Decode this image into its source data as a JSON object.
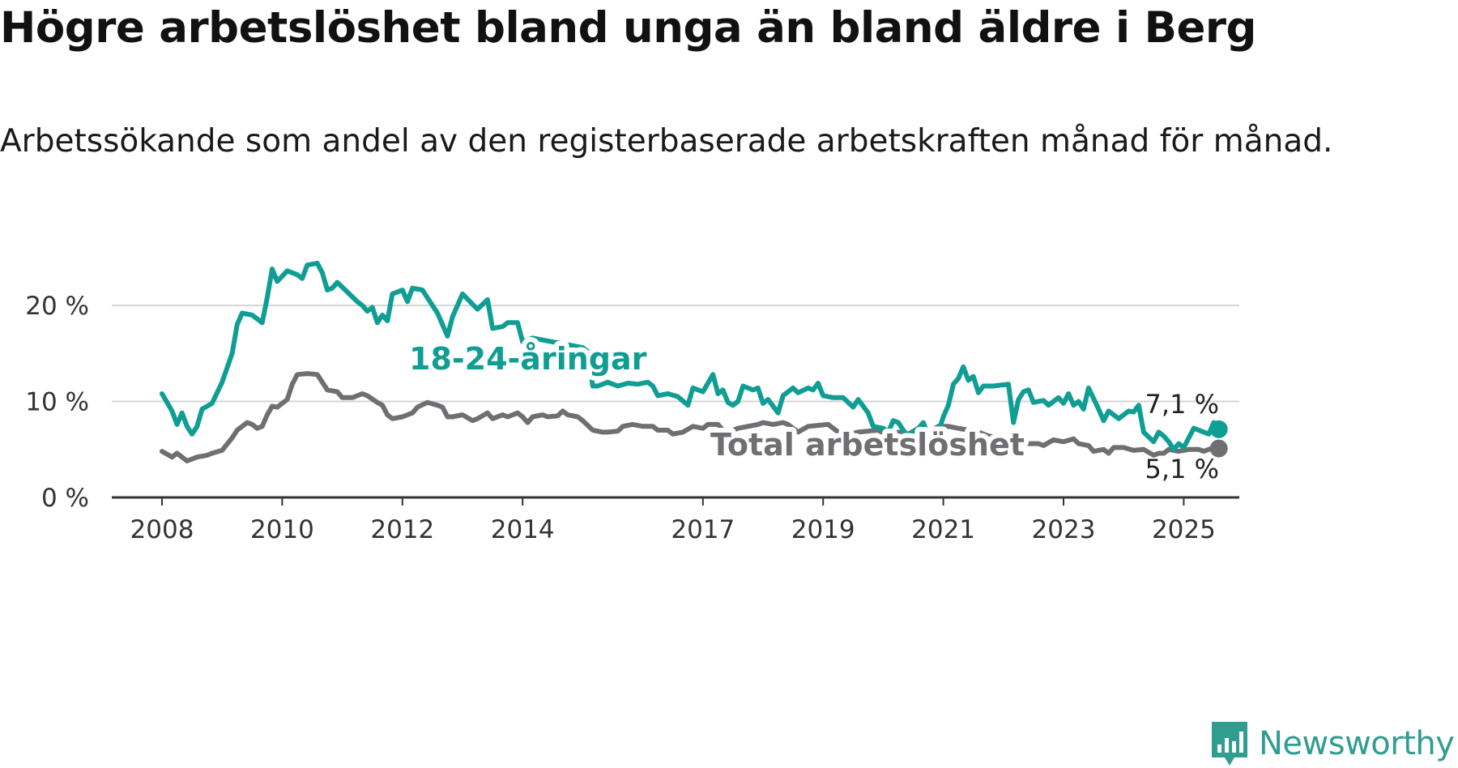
{
  "title": "Högre arbetslöshet bland unga än bland äldre i Berg",
  "subtitle": "Arbetssökande som andel av den registerbaserade arbetskraften månad för månad.",
  "brand": {
    "name": "Newsworthy",
    "icon": "newsworthy-chart-logo-icon",
    "color": "#2f9d8f"
  },
  "chart_data": {
    "type": "line",
    "title": "Högre arbetslöshet bland unga än bland äldre i Berg",
    "subtitle": "Arbetssökande som andel av den registerbaserade arbetskraften månad för månad.",
    "xlabel": "",
    "ylabel": "",
    "x_ticks": [
      "2008",
      "2010",
      "2012",
      "2014",
      "2017",
      "2019",
      "2021",
      "2023",
      "2025"
    ],
    "y_ticks": [
      "0 %",
      "10 %",
      "20 %"
    ],
    "ylim": [
      0,
      25
    ],
    "xlim": [
      "2007-03",
      "2025-12"
    ],
    "grid": "horizontal",
    "series": [
      {
        "name": "18-24-åringar",
        "color": "#109e94",
        "end_label": "7,1 %",
        "points": [
          [
            "2008-01",
            10.8
          ],
          [
            "2008-03",
            9.0
          ],
          [
            "2008-04",
            7.6
          ],
          [
            "2008-05",
            8.8
          ],
          [
            "2008-06",
            7.4
          ],
          [
            "2008-07",
            6.6
          ],
          [
            "2008-08",
            7.4
          ],
          [
            "2008-09",
            9.2
          ],
          [
            "2008-11",
            9.8
          ],
          [
            "2009-01",
            12.0
          ],
          [
            "2009-03",
            15.0
          ],
          [
            "2009-04",
            18.0
          ],
          [
            "2009-05",
            19.2
          ],
          [
            "2009-07",
            19.0
          ],
          [
            "2009-09",
            18.2
          ],
          [
            "2009-10",
            20.8
          ],
          [
            "2009-11",
            23.8
          ],
          [
            "2009-12",
            22.5
          ],
          [
            "2010-02",
            23.6
          ],
          [
            "2010-04",
            23.2
          ],
          [
            "2010-05",
            22.8
          ],
          [
            "2010-06",
            24.2
          ],
          [
            "2010-08",
            24.4
          ],
          [
            "2010-09",
            23.4
          ],
          [
            "2010-10",
            21.6
          ],
          [
            "2010-11",
            21.8
          ],
          [
            "2010-12",
            22.4
          ],
          [
            "2011-02",
            21.4
          ],
          [
            "2011-04",
            20.4
          ],
          [
            "2011-05",
            20.0
          ],
          [
            "2011-06",
            19.4
          ],
          [
            "2011-07",
            19.8
          ],
          [
            "2011-08",
            18.2
          ],
          [
            "2011-09",
            19.0
          ],
          [
            "2011-10",
            18.4
          ],
          [
            "2011-11",
            21.2
          ],
          [
            "2012-01",
            21.6
          ],
          [
            "2012-02",
            20.4
          ],
          [
            "2012-03",
            21.8
          ],
          [
            "2012-05",
            21.6
          ],
          [
            "2012-06",
            20.8
          ],
          [
            "2012-08",
            19.2
          ],
          [
            "2012-10",
            16.8
          ],
          [
            "2012-11",
            18.8
          ],
          [
            "2013-01",
            21.2
          ],
          [
            "2013-04",
            19.6
          ],
          [
            "2013-06",
            20.6
          ],
          [
            "2013-07",
            17.6
          ],
          [
            "2013-09",
            17.8
          ],
          [
            "2013-10",
            18.2
          ],
          [
            "2013-12",
            18.2
          ],
          [
            "2014-01",
            16.2
          ],
          [
            "2014-02",
            16.4
          ],
          [
            "2014-03",
            16.6
          ],
          [
            "2015-01",
            15.6
          ],
          [
            "2015-02",
            15.2
          ],
          [
            "2015-03",
            11.6
          ],
          [
            "2015-04",
            11.6
          ],
          [
            "2015-06",
            12.0
          ],
          [
            "2015-08",
            11.6
          ],
          [
            "2015-10",
            11.9
          ],
          [
            "2015-12",
            11.8
          ],
          [
            "2016-02",
            12.0
          ],
          [
            "2016-03",
            11.6
          ],
          [
            "2016-04",
            10.6
          ],
          [
            "2016-06",
            10.8
          ],
          [
            "2016-08",
            10.5
          ],
          [
            "2016-10",
            9.6
          ],
          [
            "2016-11",
            11.4
          ],
          [
            "2017-01",
            11.0
          ],
          [
            "2017-03",
            12.8
          ],
          [
            "2017-04",
            10.8
          ],
          [
            "2017-05",
            11.2
          ],
          [
            "2017-06",
            9.9
          ],
          [
            "2017-07",
            9.6
          ],
          [
            "2017-08",
            10.0
          ],
          [
            "2017-09",
            11.6
          ],
          [
            "2017-11",
            11.2
          ],
          [
            "2017-12",
            11.4
          ],
          [
            "2018-01",
            9.8
          ],
          [
            "2018-02",
            10.2
          ],
          [
            "2018-04",
            8.8
          ],
          [
            "2018-05",
            10.6
          ],
          [
            "2018-07",
            11.4
          ],
          [
            "2018-08",
            10.9
          ],
          [
            "2018-10",
            11.4
          ],
          [
            "2018-11",
            11.2
          ],
          [
            "2018-12",
            11.9
          ],
          [
            "2019-01",
            10.6
          ],
          [
            "2019-03",
            10.4
          ],
          [
            "2019-05",
            10.4
          ],
          [
            "2019-06",
            9.9
          ],
          [
            "2019-07",
            9.4
          ],
          [
            "2019-08",
            10.2
          ],
          [
            "2019-10",
            8.8
          ],
          [
            "2019-11",
            7.4
          ],
          [
            "2020-01",
            7.2
          ],
          [
            "2020-02",
            6.8
          ],
          [
            "2020-03",
            8.0
          ],
          [
            "2020-04",
            7.8
          ],
          [
            "2020-05",
            7.0
          ],
          [
            "2020-06",
            6.4
          ],
          [
            "2020-08",
            7.2
          ],
          [
            "2020-09",
            7.8
          ],
          [
            "2020-10",
            6.4
          ],
          [
            "2020-12",
            6.8
          ],
          [
            "2021-01",
            8.4
          ],
          [
            "2021-02",
            9.6
          ],
          [
            "2021-03",
            11.8
          ],
          [
            "2021-04",
            12.4
          ],
          [
            "2021-05",
            13.6
          ],
          [
            "2021-06",
            12.2
          ],
          [
            "2021-07",
            12.6
          ],
          [
            "2021-08",
            10.9
          ],
          [
            "2021-09",
            11.6
          ],
          [
            "2021-11",
            11.6
          ],
          [
            "2022-02",
            11.8
          ],
          [
            "2022-03",
            7.8
          ],
          [
            "2022-04",
            10.2
          ],
          [
            "2022-05",
            11.0
          ],
          [
            "2022-06",
            11.2
          ],
          [
            "2022-07",
            9.9
          ],
          [
            "2022-09",
            10.1
          ],
          [
            "2022-10",
            9.6
          ],
          [
            "2022-12",
            10.4
          ],
          [
            "2023-01",
            9.8
          ],
          [
            "2023-02",
            10.8
          ],
          [
            "2023-03",
            9.6
          ],
          [
            "2023-04",
            10.0
          ],
          [
            "2023-05",
            9.2
          ],
          [
            "2023-06",
            11.4
          ],
          [
            "2023-08",
            9.2
          ],
          [
            "2023-09",
            8.0
          ],
          [
            "2023-10",
            9.0
          ],
          [
            "2023-12",
            8.2
          ],
          [
            "2024-02",
            9.0
          ],
          [
            "2024-03",
            8.9
          ],
          [
            "2024-04",
            9.6
          ],
          [
            "2024-05",
            6.8
          ],
          [
            "2024-07",
            5.8
          ],
          [
            "2024-08",
            6.8
          ],
          [
            "2024-09",
            6.4
          ],
          [
            "2024-10",
            5.8
          ],
          [
            "2024-11",
            5.0
          ],
          [
            "2024-12",
            5.6
          ],
          [
            "2025-01",
            5.2
          ],
          [
            "2025-03",
            7.2
          ],
          [
            "2025-04",
            7.0
          ],
          [
            "2025-06",
            6.6
          ],
          [
            "2025-07",
            7.8
          ],
          [
            "2025-08",
            7.1
          ]
        ]
      },
      {
        "name": "Total arbetslöshet",
        "color": "#6f6f73",
        "end_label": "5,1 %",
        "points": [
          [
            "2008-01",
            4.8
          ],
          [
            "2008-03",
            4.2
          ],
          [
            "2008-04",
            4.6
          ],
          [
            "2008-06",
            3.8
          ],
          [
            "2008-08",
            4.2
          ],
          [
            "2008-10",
            4.4
          ],
          [
            "2008-11",
            4.6
          ],
          [
            "2009-01",
            4.9
          ],
          [
            "2009-03",
            6.2
          ],
          [
            "2009-04",
            7.0
          ],
          [
            "2009-06",
            7.8
          ],
          [
            "2009-07",
            7.6
          ],
          [
            "2009-08",
            7.2
          ],
          [
            "2009-09",
            7.4
          ],
          [
            "2009-10",
            8.6
          ],
          [
            "2009-11",
            9.5
          ],
          [
            "2009-12",
            9.4
          ],
          [
            "2010-02",
            10.2
          ],
          [
            "2010-03",
            11.8
          ],
          [
            "2010-04",
            12.8
          ],
          [
            "2010-06",
            12.9
          ],
          [
            "2010-08",
            12.8
          ],
          [
            "2010-09",
            12.0
          ],
          [
            "2010-10",
            11.2
          ],
          [
            "2010-12",
            11.0
          ],
          [
            "2011-01",
            10.4
          ],
          [
            "2011-03",
            10.4
          ],
          [
            "2011-05",
            10.8
          ],
          [
            "2011-06",
            10.6
          ],
          [
            "2011-08",
            9.9
          ],
          [
            "2011-09",
            9.6
          ],
          [
            "2011-10",
            8.6
          ],
          [
            "2011-11",
            8.2
          ],
          [
            "2012-01",
            8.4
          ],
          [
            "2012-03",
            8.8
          ],
          [
            "2012-04",
            9.4
          ],
          [
            "2012-06",
            9.9
          ],
          [
            "2012-08",
            9.6
          ],
          [
            "2012-09",
            9.4
          ],
          [
            "2012-10",
            8.4
          ],
          [
            "2012-11",
            8.4
          ],
          [
            "2013-01",
            8.6
          ],
          [
            "2013-03",
            8.0
          ],
          [
            "2013-04",
            8.2
          ],
          [
            "2013-06",
            8.8
          ],
          [
            "2013-07",
            8.2
          ],
          [
            "2013-09",
            8.6
          ],
          [
            "2013-10",
            8.4
          ],
          [
            "2013-12",
            8.8
          ],
          [
            "2014-01",
            8.4
          ],
          [
            "2014-02",
            7.8
          ],
          [
            "2014-03",
            8.4
          ],
          [
            "2014-05",
            8.6
          ],
          [
            "2014-06",
            8.4
          ],
          [
            "2014-08",
            8.5
          ],
          [
            "2014-09",
            9.0
          ],
          [
            "2014-10",
            8.6
          ],
          [
            "2014-12",
            8.4
          ],
          [
            "2015-01",
            8.0
          ],
          [
            "2015-03",
            7.0
          ],
          [
            "2015-05",
            6.8
          ],
          [
            "2015-06",
            6.8
          ],
          [
            "2015-08",
            6.9
          ],
          [
            "2015-09",
            7.4
          ],
          [
            "2015-11",
            7.6
          ],
          [
            "2016-01",
            7.4
          ],
          [
            "2016-03",
            7.4
          ],
          [
            "2016-04",
            7.0
          ],
          [
            "2016-06",
            7.0
          ],
          [
            "2016-07",
            6.6
          ],
          [
            "2016-09",
            6.8
          ],
          [
            "2016-11",
            7.4
          ],
          [
            "2017-01",
            7.2
          ],
          [
            "2017-02",
            7.6
          ],
          [
            "2017-04",
            7.6
          ],
          [
            "2017-05",
            7.0
          ],
          [
            "2017-06",
            6.8
          ],
          [
            "2017-08",
            7.2
          ],
          [
            "2017-10",
            7.4
          ],
          [
            "2017-12",
            7.6
          ],
          [
            "2018-01",
            7.8
          ],
          [
            "2018-03",
            7.6
          ],
          [
            "2018-05",
            7.8
          ],
          [
            "2018-06",
            7.6
          ],
          [
            "2018-08",
            6.8
          ],
          [
            "2018-10",
            7.4
          ],
          [
            "2018-12",
            7.5
          ],
          [
            "2019-02",
            7.6
          ],
          [
            "2019-04",
            6.8
          ],
          [
            "2019-06",
            6.6
          ],
          [
            "2019-08",
            6.8
          ],
          [
            "2019-10",
            6.9
          ],
          [
            "2019-12",
            7.0
          ],
          [
            "2020-02",
            6.4
          ],
          [
            "2020-04",
            6.8
          ],
          [
            "2020-06",
            6.6
          ],
          [
            "2020-08",
            7.2
          ],
          [
            "2020-10",
            6.8
          ],
          [
            "2020-12",
            7.4
          ],
          [
            "2021-02",
            7.4
          ],
          [
            "2021-04",
            7.2
          ],
          [
            "2021-06",
            7.0
          ],
          [
            "2021-08",
            6.8
          ],
          [
            "2021-10",
            6.4
          ],
          [
            "2021-12",
            6.2
          ],
          [
            "2022-02",
            6.0
          ],
          [
            "2022-04",
            5.8
          ],
          [
            "2022-06",
            5.6
          ],
          [
            "2022-08",
            5.6
          ],
          [
            "2022-09",
            5.4
          ],
          [
            "2022-11",
            6.0
          ],
          [
            "2023-01",
            5.8
          ],
          [
            "2023-03",
            6.1
          ],
          [
            "2023-04",
            5.6
          ],
          [
            "2023-06",
            5.4
          ],
          [
            "2023-07",
            4.8
          ],
          [
            "2023-09",
            5.0
          ],
          [
            "2023-10",
            4.6
          ],
          [
            "2023-11",
            5.2
          ],
          [
            "2024-01",
            5.2
          ],
          [
            "2024-03",
            4.9
          ],
          [
            "2024-05",
            5.0
          ],
          [
            "2024-07",
            4.4
          ],
          [
            "2024-08",
            4.6
          ],
          [
            "2024-09",
            4.6
          ],
          [
            "2024-10",
            5.0
          ],
          [
            "2024-12",
            4.8
          ],
          [
            "2025-02",
            5.0
          ],
          [
            "2025-04",
            5.0
          ],
          [
            "2025-05",
            4.8
          ],
          [
            "2025-07",
            5.2
          ],
          [
            "2025-08",
            5.1
          ]
        ]
      }
    ]
  }
}
